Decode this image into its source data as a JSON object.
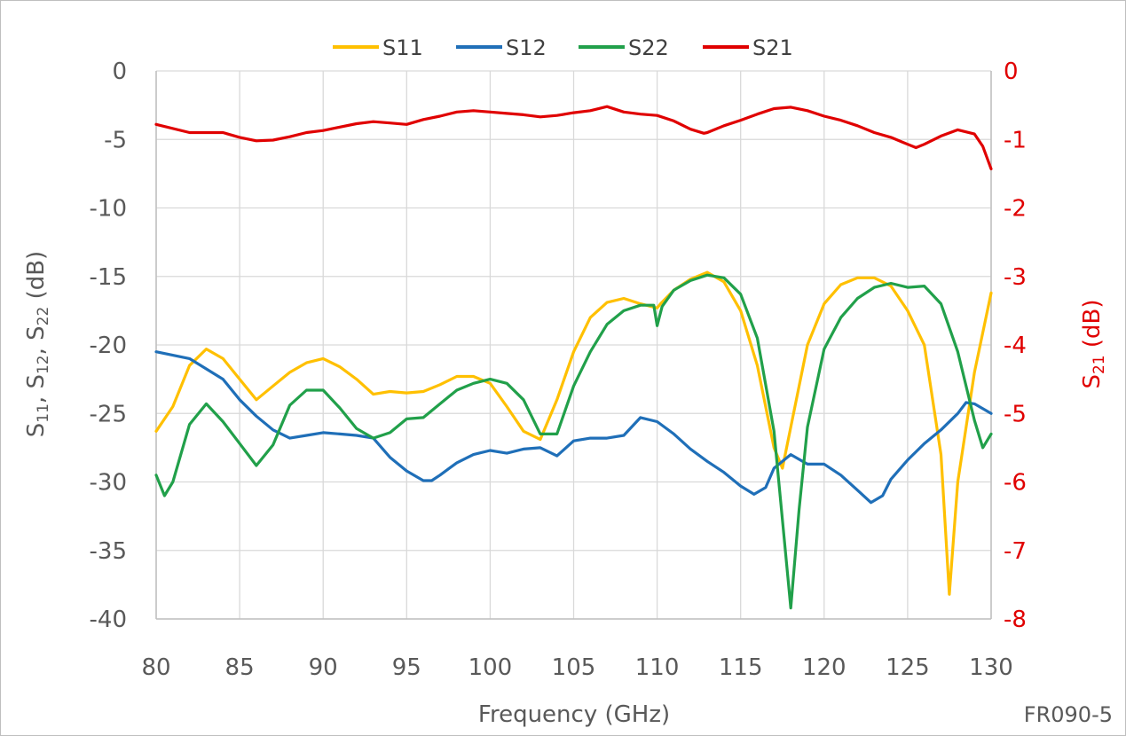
{
  "chart_data": {
    "type": "line",
    "xlabel": "Frequency (GHz)",
    "ylabel_left_main": "S11, S12, S22 (dB)",
    "ylabel_right_main": "S21 (dB)",
    "annotation": "FR090-5",
    "xlim": [
      80,
      130
    ],
    "x_ticks": [
      80,
      85,
      90,
      95,
      100,
      105,
      110,
      115,
      120,
      125,
      130
    ],
    "ylim_left": [
      -40,
      0
    ],
    "y_ticks_left": [
      0,
      -5,
      -10,
      -15,
      -20,
      -25,
      -30,
      -35,
      -40
    ],
    "ylim_right": [
      -8,
      0
    ],
    "y_ticks_right": [
      0,
      -1,
      -2,
      -3,
      -4,
      -5,
      -6,
      -7,
      -8
    ],
    "grid": true,
    "legend_position": "top",
    "series": [
      {
        "name": "S11",
        "axis": "left",
        "color": "#ffc000",
        "x": [
          80,
          81,
          82,
          83,
          84,
          85,
          86,
          87,
          88,
          89,
          90,
          91,
          92,
          93,
          94,
          95,
          96,
          97,
          98,
          99,
          100,
          101,
          102,
          103,
          104,
          105,
          106,
          107,
          108,
          109,
          110,
          110.2,
          111,
          112,
          113,
          114,
          115,
          116,
          117,
          117.5,
          118,
          119,
          120,
          121,
          122,
          123,
          124,
          125,
          126,
          127,
          127.5,
          128,
          129,
          130
        ],
        "y": [
          -26.3,
          -24.5,
          -21.5,
          -20.3,
          -21,
          -22.5,
          -24,
          -23,
          -22,
          -21.3,
          -21,
          -21.6,
          -22.5,
          -23.6,
          -23.4,
          -23.5,
          -23.4,
          -22.9,
          -22.3,
          -22.3,
          -22.8,
          -24.5,
          -26.3,
          -26.9,
          -24,
          -20.5,
          -18,
          -16.9,
          -16.6,
          -17,
          -17.3,
          -17,
          -16,
          -15.2,
          -14.7,
          -15.4,
          -17.5,
          -21.5,
          -27.5,
          -29,
          -26,
          -20,
          -17,
          -15.6,
          -15.1,
          -15.1,
          -15.7,
          -17.5,
          -20,
          -28,
          -38.2,
          -30,
          -22,
          -16.2
        ]
      },
      {
        "name": "S12",
        "axis": "left",
        "color": "#1f6fb8",
        "x": [
          80,
          82,
          84,
          85,
          86,
          87,
          88,
          89,
          90,
          91,
          92,
          93,
          94,
          95,
          96,
          96.5,
          97,
          98,
          99,
          100,
          101,
          102,
          103,
          104,
          105,
          106,
          107,
          108,
          109,
          110,
          111,
          112,
          113,
          114,
          115,
          115.8,
          116.5,
          117,
          118,
          119,
          120,
          121,
          122,
          122.8,
          123.5,
          124,
          125,
          126,
          127,
          128,
          128.5,
          129,
          130
        ],
        "y": [
          -20.5,
          -21,
          -22.5,
          -24,
          -25.2,
          -26.2,
          -26.8,
          -26.6,
          -26.4,
          -26.5,
          -26.6,
          -26.8,
          -28.2,
          -29.2,
          -29.9,
          -29.9,
          -29.5,
          -28.6,
          -28,
          -27.7,
          -27.9,
          -27.6,
          -27.5,
          -28.1,
          -27,
          -26.8,
          -26.8,
          -26.6,
          -25.3,
          -25.6,
          -26.5,
          -27.6,
          -28.5,
          -29.3,
          -30.3,
          -30.9,
          -30.4,
          -29,
          -28,
          -28.7,
          -28.7,
          -29.5,
          -30.6,
          -31.5,
          -31,
          -29.8,
          -28.4,
          -27.2,
          -26.2,
          -25,
          -24.2,
          -24.3,
          -25
        ]
      },
      {
        "name": "S22",
        "axis": "left",
        "color": "#21a04a",
        "x": [
          80,
          80.5,
          81,
          82,
          83,
          84,
          85,
          86,
          87,
          88,
          89,
          90,
          91,
          92,
          93,
          94,
          95,
          96,
          97,
          98,
          99,
          100,
          101,
          102,
          103,
          104,
          105,
          106,
          107,
          108,
          109,
          109.8,
          110,
          110.3,
          111,
          112,
          113,
          114,
          115,
          116,
          117,
          117.6,
          118,
          118.5,
          119,
          120,
          121,
          122,
          123,
          124,
          125,
          126,
          127,
          128,
          129,
          129.5,
          130
        ],
        "y": [
          -29.5,
          -31,
          -30,
          -25.8,
          -24.3,
          -25.6,
          -27.2,
          -28.8,
          -27.3,
          -24.4,
          -23.3,
          -23.3,
          -24.6,
          -26.1,
          -26.8,
          -26.4,
          -25.4,
          -25.3,
          -24.3,
          -23.3,
          -22.8,
          -22.5,
          -22.8,
          -24,
          -26.5,
          -26.5,
          -23,
          -20.5,
          -18.5,
          -17.5,
          -17.1,
          -17.1,
          -18.6,
          -17.2,
          -16,
          -15.3,
          -14.9,
          -15.1,
          -16.3,
          -19.5,
          -26.3,
          -34,
          -39.2,
          -32,
          -26,
          -20.3,
          -18,
          -16.6,
          -15.8,
          -15.5,
          -15.8,
          -15.7,
          -17,
          -20.5,
          -25.5,
          -27.5,
          -26.5
        ]
      },
      {
        "name": "S21",
        "axis": "right",
        "color": "#e00000",
        "x": [
          80,
          82,
          84,
          85,
          86,
          87,
          88,
          89,
          90,
          91,
          92,
          93,
          94,
          95,
          96,
          97,
          98,
          99,
          100,
          101,
          102,
          103,
          104,
          105,
          106,
          107,
          108,
          109,
          110,
          111,
          112,
          112.8,
          113,
          114,
          115,
          116,
          117,
          118,
          119,
          120,
          121,
          122,
          123,
          124,
          125,
          125.5,
          126,
          127,
          128,
          129,
          129.5,
          130
        ],
        "y": [
          -0.78,
          -0.9,
          -0.9,
          -0.97,
          -1.02,
          -1.01,
          -0.96,
          -0.9,
          -0.87,
          -0.82,
          -0.77,
          -0.74,
          -0.76,
          -0.78,
          -0.71,
          -0.66,
          -0.6,
          -0.58,
          -0.6,
          -0.62,
          -0.64,
          -0.67,
          -0.65,
          -0.61,
          -0.58,
          -0.52,
          -0.6,
          -0.63,
          -0.65,
          -0.73,
          -0.85,
          -0.91,
          -0.9,
          -0.8,
          -0.72,
          -0.63,
          -0.55,
          -0.53,
          -0.58,
          -0.66,
          -0.72,
          -0.8,
          -0.9,
          -0.97,
          -1.07,
          -1.12,
          -1.07,
          -0.95,
          -0.86,
          -0.92,
          -1.1,
          -1.43
        ]
      }
    ]
  }
}
